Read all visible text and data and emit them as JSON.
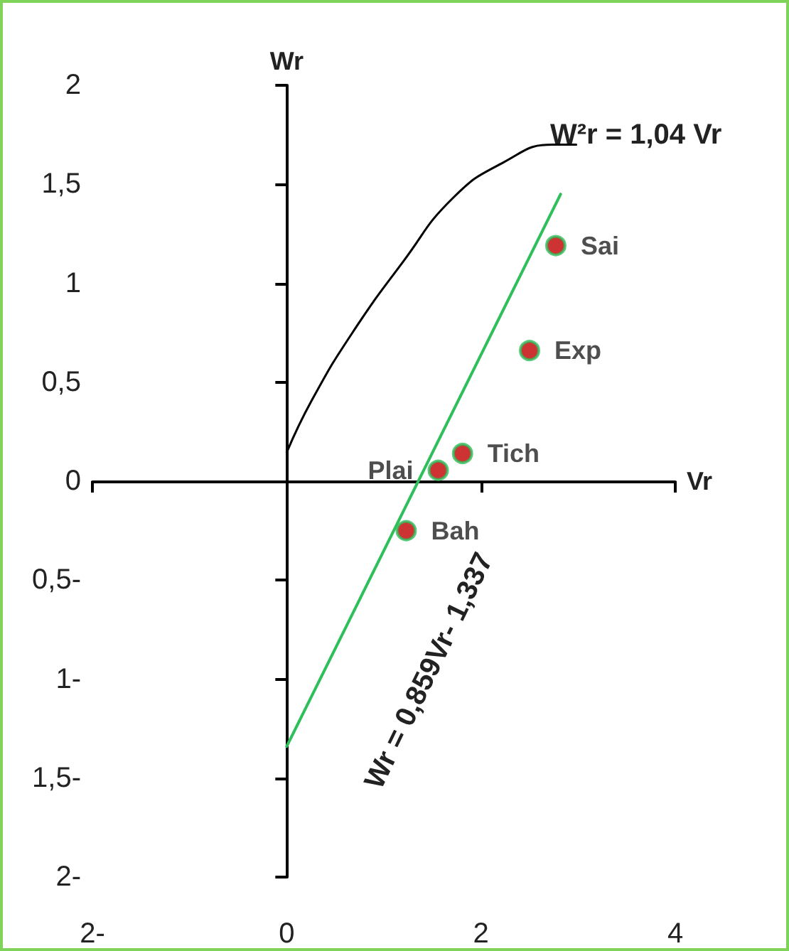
{
  "chart_data": {
    "type": "scatter",
    "xlabel": "Vr",
    "ylabel": "Wr",
    "xlim": [
      -2,
      4
    ],
    "xticks": [
      {
        "value": -2,
        "label": "2-"
      },
      0,
      2,
      4
    ],
    "ylim": [
      -2,
      2
    ],
    "yticks": [
      {
        "value": -2,
        "label": "2-"
      },
      {
        "value": -1.5,
        "label": "1,5-"
      },
      {
        "value": -1,
        "label": "1-"
      },
      {
        "value": -0.5,
        "label": "0,5-"
      },
      0,
      {
        "value": 0.5,
        "label": "0,5"
      },
      1,
      {
        "value": 1.5,
        "label": "1,5"
      },
      2
    ],
    "series": [
      {
        "type": "line",
        "marker": "none",
        "color": "#000000",
        "x": [
          0,
          0.26,
          0.67,
          1.2,
          1.71,
          2.23,
          2.74,
          2.98
        ],
        "values": [
          0.145,
          0.41,
          0.745,
          1.11,
          1.43,
          1.61,
          1.7,
          1.7
        ]
      },
      {
        "type": "line",
        "marker": "none",
        "color": "#2ebf5b",
        "x": [
          0,
          2.82
        ],
        "values": [
          -1.34,
          1.45
        ]
      },
      {
        "marker": "circle",
        "color": "#c00000",
        "x": [
          2.77,
          2.5,
          1.81,
          1.56,
          1.23
        ],
        "values": [
          1.19,
          0.66,
          0.14,
          0.055,
          -0.25
        ],
        "value_labels": [
          "Sai",
          "Exp",
          "Tich",
          "Plai",
          "Bah"
        ]
      }
    ],
    "annotations": [
      "W²r = 1,04 Vr",
      "Wr = 0,859Vr- 1,337"
    ]
  }
}
